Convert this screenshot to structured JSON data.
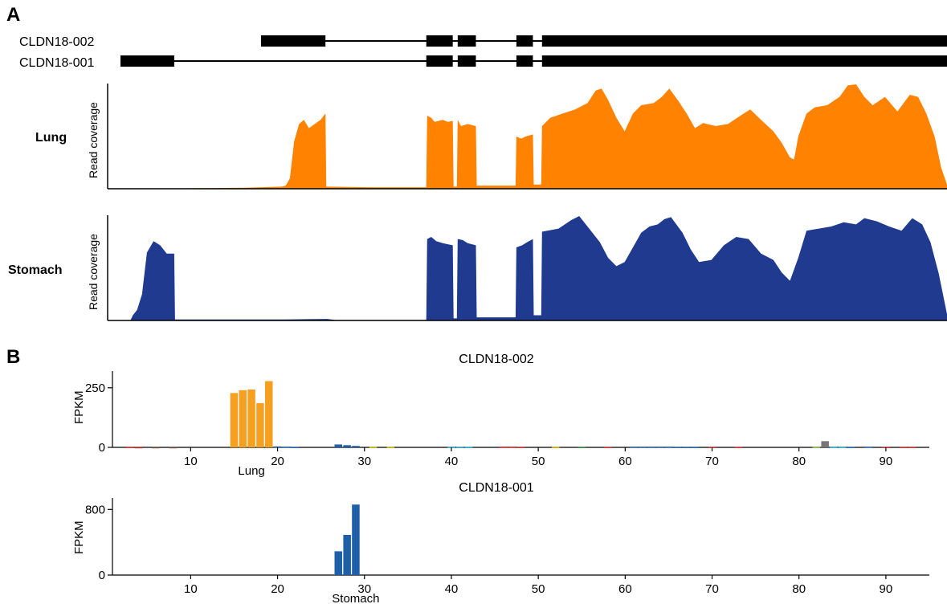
{
  "panels": {
    "a": "A",
    "b": "B"
  },
  "gene_model": {
    "isoforms": [
      {
        "name": "CLDN18-002",
        "exons": [
          [
            0.17,
            0.248
          ],
          [
            0.37,
            0.402
          ],
          [
            0.408,
            0.43
          ],
          [
            0.479,
            0.499
          ],
          [
            0.51,
            1.0
          ]
        ]
      },
      {
        "name": "CLDN18-001",
        "exons": [
          [
            0.0,
            0.065
          ],
          [
            0.37,
            0.402
          ],
          [
            0.408,
            0.43
          ],
          [
            0.479,
            0.499
          ],
          [
            0.51,
            1.0
          ]
        ]
      }
    ]
  },
  "coverage_tracks": [
    {
      "name": "Lung",
      "ylabel": "Read coverage",
      "color": "#FF8200",
      "profile": [
        [
          0.0,
          0.0
        ],
        [
          0.06,
          0.0
        ],
        [
          0.065,
          0.003
        ],
        [
          0.1,
          0.006
        ],
        [
          0.15,
          0.01
        ],
        [
          0.17,
          0.015
        ],
        [
          0.195,
          0.02
        ],
        [
          0.2,
          0.03
        ],
        [
          0.205,
          0.1
        ],
        [
          0.21,
          0.45
        ],
        [
          0.216,
          0.62
        ],
        [
          0.222,
          0.66
        ],
        [
          0.228,
          0.58
        ],
        [
          0.235,
          0.62
        ],
        [
          0.242,
          0.66
        ],
        [
          0.248,
          0.72
        ],
        [
          0.249,
          0.02
        ],
        [
          0.3,
          0.015
        ],
        [
          0.37,
          0.015
        ],
        [
          0.371,
          0.7
        ],
        [
          0.376,
          0.68
        ],
        [
          0.38,
          0.64
        ],
        [
          0.39,
          0.66
        ],
        [
          0.396,
          0.64
        ],
        [
          0.402,
          0.65
        ],
        [
          0.403,
          0.02
        ],
        [
          0.407,
          0.02
        ],
        [
          0.408,
          0.66
        ],
        [
          0.412,
          0.6
        ],
        [
          0.42,
          0.62
        ],
        [
          0.43,
          0.6
        ],
        [
          0.431,
          0.03
        ],
        [
          0.478,
          0.03
        ],
        [
          0.479,
          0.5
        ],
        [
          0.485,
          0.48
        ],
        [
          0.49,
          0.5
        ],
        [
          0.499,
          0.52
        ],
        [
          0.5,
          0.04
        ],
        [
          0.509,
          0.04
        ],
        [
          0.51,
          0.6
        ],
        [
          0.52,
          0.68
        ],
        [
          0.535,
          0.72
        ],
        [
          0.55,
          0.76
        ],
        [
          0.565,
          0.82
        ],
        [
          0.575,
          0.94
        ],
        [
          0.582,
          0.96
        ],
        [
          0.59,
          0.85
        ],
        [
          0.6,
          0.68
        ],
        [
          0.61,
          0.55
        ],
        [
          0.62,
          0.72
        ],
        [
          0.63,
          0.8
        ],
        [
          0.645,
          0.82
        ],
        [
          0.655,
          0.88
        ],
        [
          0.664,
          0.96
        ],
        [
          0.675,
          0.84
        ],
        [
          0.685,
          0.72
        ],
        [
          0.695,
          0.58
        ],
        [
          0.705,
          0.63
        ],
        [
          0.72,
          0.6
        ],
        [
          0.735,
          0.62
        ],
        [
          0.75,
          0.7
        ],
        [
          0.762,
          0.76
        ],
        [
          0.775,
          0.66
        ],
        [
          0.79,
          0.55
        ],
        [
          0.8,
          0.44
        ],
        [
          0.81,
          0.3
        ],
        [
          0.815,
          0.28
        ],
        [
          0.82,
          0.5
        ],
        [
          0.83,
          0.72
        ],
        [
          0.84,
          0.78
        ],
        [
          0.855,
          0.8
        ],
        [
          0.87,
          0.88
        ],
        [
          0.88,
          0.99
        ],
        [
          0.89,
          1.0
        ],
        [
          0.9,
          0.88
        ],
        [
          0.91,
          0.8
        ],
        [
          0.925,
          0.88
        ],
        [
          0.94,
          0.74
        ],
        [
          0.955,
          0.9
        ],
        [
          0.965,
          0.88
        ],
        [
          0.975,
          0.72
        ],
        [
          0.985,
          0.5
        ],
        [
          0.993,
          0.2
        ],
        [
          1.0,
          0.04
        ]
      ]
    },
    {
      "name": "Stomach",
      "ylabel": "Read coverage",
      "color": "#1F3A8F",
      "profile": [
        [
          0.0,
          0.0
        ],
        [
          0.012,
          0.0
        ],
        [
          0.015,
          0.05
        ],
        [
          0.02,
          0.1
        ],
        [
          0.026,
          0.25
        ],
        [
          0.032,
          0.65
        ],
        [
          0.04,
          0.76
        ],
        [
          0.048,
          0.72
        ],
        [
          0.056,
          0.64
        ],
        [
          0.065,
          0.64
        ],
        [
          0.066,
          0.01
        ],
        [
          0.12,
          0.01
        ],
        [
          0.2,
          0.01
        ],
        [
          0.25,
          0.015
        ],
        [
          0.26,
          0.005
        ],
        [
          0.37,
          0.005
        ],
        [
          0.371,
          0.78
        ],
        [
          0.376,
          0.8
        ],
        [
          0.382,
          0.76
        ],
        [
          0.39,
          0.74
        ],
        [
          0.396,
          0.73
        ],
        [
          0.402,
          0.72
        ],
        [
          0.403,
          0.02
        ],
        [
          0.407,
          0.02
        ],
        [
          0.408,
          0.78
        ],
        [
          0.414,
          0.77
        ],
        [
          0.42,
          0.74
        ],
        [
          0.43,
          0.72
        ],
        [
          0.431,
          0.03
        ],
        [
          0.478,
          0.03
        ],
        [
          0.479,
          0.7
        ],
        [
          0.486,
          0.72
        ],
        [
          0.492,
          0.75
        ],
        [
          0.499,
          0.78
        ],
        [
          0.5,
          0.05
        ],
        [
          0.509,
          0.05
        ],
        [
          0.51,
          0.85
        ],
        [
          0.53,
          0.88
        ],
        [
          0.545,
          0.96
        ],
        [
          0.555,
          1.0
        ],
        [
          0.565,
          0.9
        ],
        [
          0.58,
          0.75
        ],
        [
          0.59,
          0.6
        ],
        [
          0.6,
          0.52
        ],
        [
          0.61,
          0.56
        ],
        [
          0.62,
          0.7
        ],
        [
          0.63,
          0.84
        ],
        [
          0.64,
          0.9
        ],
        [
          0.65,
          0.92
        ],
        [
          0.658,
          0.97
        ],
        [
          0.666,
          0.99
        ],
        [
          0.68,
          0.84
        ],
        [
          0.69,
          0.68
        ],
        [
          0.7,
          0.56
        ],
        [
          0.715,
          0.58
        ],
        [
          0.73,
          0.72
        ],
        [
          0.745,
          0.8
        ],
        [
          0.76,
          0.78
        ],
        [
          0.775,
          0.64
        ],
        [
          0.79,
          0.58
        ],
        [
          0.8,
          0.46
        ],
        [
          0.81,
          0.38
        ],
        [
          0.82,
          0.6
        ],
        [
          0.83,
          0.86
        ],
        [
          0.845,
          0.88
        ],
        [
          0.86,
          0.9
        ],
        [
          0.875,
          0.94
        ],
        [
          0.89,
          0.92
        ],
        [
          0.9,
          0.98
        ],
        [
          0.915,
          0.95
        ],
        [
          0.93,
          0.9
        ],
        [
          0.945,
          0.86
        ],
        [
          0.958,
          0.98
        ],
        [
          0.97,
          0.92
        ],
        [
          0.98,
          0.75
        ],
        [
          0.99,
          0.45
        ],
        [
          1.0,
          0.06
        ]
      ]
    }
  ],
  "chart_data": [
    {
      "type": "bar",
      "title": "CLDN18-002",
      "ylabel": "FPKM",
      "xlim": [
        1,
        95
      ],
      "ylim": [
        0,
        320
      ],
      "yticks": [
        0,
        250
      ],
      "xticks": [
        10,
        20,
        30,
        40,
        50,
        60,
        70,
        80,
        90
      ],
      "group_label": {
        "text": "Lung",
        "at": 17
      },
      "bars": [
        {
          "x": 3,
          "value": 2,
          "color": "#C62828"
        },
        {
          "x": 4,
          "value": 1,
          "color": "#C62828"
        },
        {
          "x": 6,
          "value": 1,
          "color": "#6D4C41"
        },
        {
          "x": 8,
          "value": 1,
          "color": "#6D4C41"
        },
        {
          "x": 15,
          "value": 228,
          "color": "#F5A020"
        },
        {
          "x": 16,
          "value": 240,
          "color": "#F5A020"
        },
        {
          "x": 17,
          "value": 243,
          "color": "#F5A020"
        },
        {
          "x": 18,
          "value": 186,
          "color": "#F5A020"
        },
        {
          "x": 19,
          "value": 278,
          "color": "#F5A020"
        },
        {
          "x": 20,
          "value": 4,
          "color": "#1F5FA8"
        },
        {
          "x": 21,
          "value": 3,
          "color": "#1F5FA8"
        },
        {
          "x": 22,
          "value": 2,
          "color": "#1F5FA8"
        },
        {
          "x": 27,
          "value": 12,
          "color": "#1F5FA8"
        },
        {
          "x": 28,
          "value": 9,
          "color": "#1F5FA8"
        },
        {
          "x": 29,
          "value": 6,
          "color": "#1F5FA8"
        },
        {
          "x": 31,
          "value": 2,
          "color": "#C9B000"
        },
        {
          "x": 33,
          "value": 2,
          "color": "#C9B000"
        },
        {
          "x": 40,
          "value": 3,
          "color": "#26A6C9"
        },
        {
          "x": 41,
          "value": 2,
          "color": "#26A6C9"
        },
        {
          "x": 42,
          "value": 2,
          "color": "#26A6C9"
        },
        {
          "x": 46,
          "value": 3,
          "color": "#C62828"
        },
        {
          "x": 47,
          "value": 3,
          "color": "#C62828"
        },
        {
          "x": 48,
          "value": 2,
          "color": "#C62828"
        },
        {
          "x": 52,
          "value": 2,
          "color": "#C9B000"
        },
        {
          "x": 55,
          "value": 2,
          "color": "#2E7D32"
        },
        {
          "x": 58,
          "value": 2,
          "color": "#C62828"
        },
        {
          "x": 61,
          "value": 3,
          "color": "#1F5FA8"
        },
        {
          "x": 62,
          "value": 3,
          "color": "#1F5FA8"
        },
        {
          "x": 63,
          "value": 3,
          "color": "#1F5FA8"
        },
        {
          "x": 64,
          "value": 3,
          "color": "#1F5FA8"
        },
        {
          "x": 65,
          "value": 3,
          "color": "#1F5FA8"
        },
        {
          "x": 66,
          "value": 2,
          "color": "#1F5FA8"
        },
        {
          "x": 67,
          "value": 2,
          "color": "#1F5FA8"
        },
        {
          "x": 68,
          "value": 2,
          "color": "#1F5FA8"
        },
        {
          "x": 70,
          "value": 2,
          "color": "#C62828"
        },
        {
          "x": 73,
          "value": 2,
          "color": "#C62828"
        },
        {
          "x": 82,
          "value": 3,
          "color": "#7CB342"
        },
        {
          "x": 83,
          "value": 26,
          "color": "#777777"
        },
        {
          "x": 84,
          "value": 3,
          "color": "#26A6C9"
        },
        {
          "x": 85,
          "value": 3,
          "color": "#26A6C9"
        },
        {
          "x": 86,
          "value": 2,
          "color": "#1F5FA8"
        },
        {
          "x": 88,
          "value": 3,
          "color": "#1F5FA8"
        },
        {
          "x": 90,
          "value": 2,
          "color": "#C62828"
        },
        {
          "x": 92,
          "value": 2,
          "color": "#C62828"
        },
        {
          "x": 93,
          "value": 2,
          "color": "#C62828"
        }
      ]
    },
    {
      "type": "bar",
      "title": "CLDN18-001",
      "ylabel": "FPKM",
      "xlim": [
        1,
        95
      ],
      "ylim": [
        0,
        940
      ],
      "yticks": [
        0,
        800
      ],
      "xticks": [
        10,
        20,
        30,
        40,
        50,
        60,
        70,
        80,
        90
      ],
      "group_label": {
        "text": "Stomach",
        "at": 29
      },
      "bars": [
        {
          "x": 27,
          "value": 290,
          "color": "#1F5FA8"
        },
        {
          "x": 28,
          "value": 490,
          "color": "#1F5FA8"
        },
        {
          "x": 29,
          "value": 860,
          "color": "#1F5FA8"
        }
      ]
    }
  ]
}
